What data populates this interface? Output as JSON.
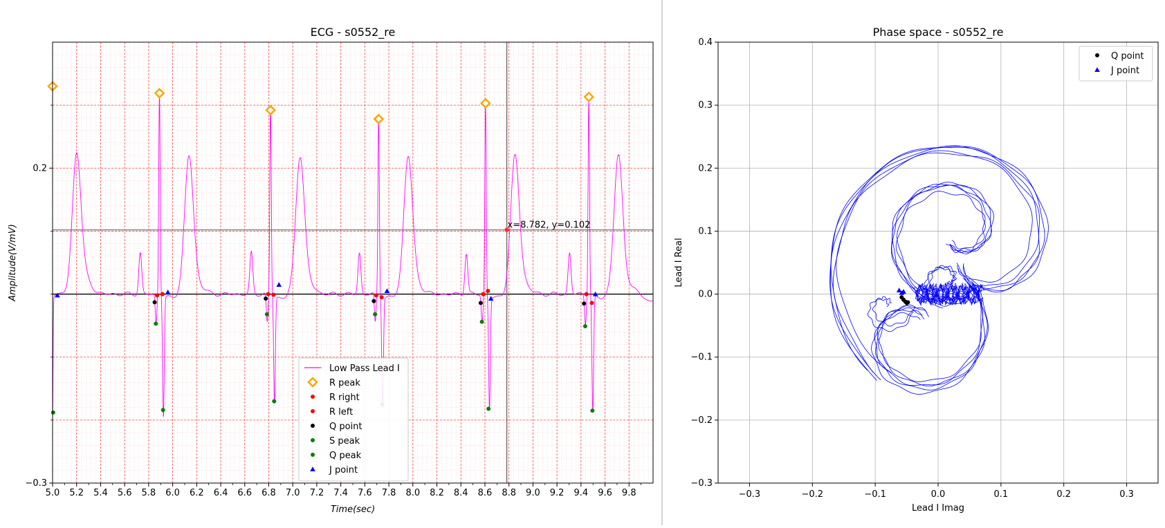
{
  "chart_data": [
    {
      "type": "line",
      "title": "ECG - s0552_re",
      "xlabel": "Time(sec)",
      "ylabel": "Amplitude(V/mV)",
      "xlim": [
        5.0,
        10.0
      ],
      "ylim": [
        -0.3,
        0.4
      ],
      "x_ticks": [
        "5.0",
        "5.2",
        "5.4",
        "5.6",
        "5.8",
        "6.0",
        "6.2",
        "6.4",
        "6.6",
        "6.8",
        "7.0",
        "7.2",
        "7.4",
        "7.6",
        "7.8",
        "8.0",
        "8.2",
        "8.4",
        "8.6",
        "8.8",
        "9.0",
        "9.2",
        "9.4",
        "9.6",
        "9.8"
      ],
      "y_ticks": [
        "0.2",
        "−0.3"
      ],
      "grid": "major and minor, red dashed",
      "baseline_y": 0.0,
      "cursor": {
        "x": 8.782,
        "y": 0.102,
        "label": "x=8.782, y=0.102"
      },
      "beats": [
        5.89,
        6.815,
        7.715,
        8.605,
        9.465
      ],
      "legend_position": "lower-center",
      "series": [
        {
          "name": "Low Pass Lead I",
          "color": "#ff00ff",
          "marker": "line"
        },
        {
          "name": "R peak",
          "color": "#ffa500",
          "marker": "diamond",
          "points": [
            [
              5.0,
              0.33
            ],
            [
              5.89,
              0.319
            ],
            [
              6.815,
              0.292
            ],
            [
              7.715,
              0.278
            ],
            [
              8.605,
              0.303
            ],
            [
              9.465,
              0.313
            ]
          ]
        },
        {
          "name": "R right",
          "color": "#ff0000",
          "marker": "dot",
          "points": [
            [
              5.915,
              0.0
            ],
            [
              6.84,
              -0.001
            ],
            [
              7.74,
              -0.005
            ],
            [
              8.625,
              0.005
            ],
            [
              9.49,
              -0.014
            ]
          ]
        },
        {
          "name": "R left",
          "color": "#ff0000",
          "marker": "dot",
          "points": [
            [
              5.87,
              -0.002
            ],
            [
              6.795,
              0.0
            ],
            [
              7.695,
              -0.002
            ],
            [
              8.585,
              0.0
            ],
            [
              9.445,
              0.0
            ]
          ]
        },
        {
          "name": "Q point",
          "color": "#000000",
          "marker": "dot",
          "points": [
            [
              5.85,
              -0.013
            ],
            [
              6.775,
              -0.007
            ],
            [
              7.675,
              -0.011
            ],
            [
              8.565,
              -0.014
            ],
            [
              9.425,
              -0.015
            ]
          ]
        },
        {
          "name": "S peak",
          "color": "#008000",
          "marker": "dot",
          "points": [
            [
              5.005,
              -0.188
            ],
            [
              5.92,
              -0.184
            ],
            [
              6.845,
              -0.17
            ],
            [
              7.745,
              -0.175
            ],
            [
              8.63,
              -0.182
            ],
            [
              9.495,
              -0.185
            ]
          ]
        },
        {
          "name": "Q peak",
          "color": "#008000",
          "marker": "dot",
          "points": [
            [
              5.86,
              -0.047
            ],
            [
              6.785,
              -0.032
            ],
            [
              7.685,
              -0.032
            ],
            [
              8.575,
              -0.044
            ],
            [
              9.435,
              -0.051
            ]
          ]
        },
        {
          "name": "J point",
          "color": "#0000ff",
          "marker": "triangle",
          "points": [
            [
              5.04,
              -0.002
            ],
            [
              5.96,
              0.003
            ],
            [
              6.885,
              0.015
            ],
            [
              7.785,
              0.005
            ],
            [
              8.65,
              -0.007
            ],
            [
              9.52,
              0.0
            ]
          ]
        }
      ]
    },
    {
      "type": "scatter",
      "title": "Phase space - s0552_re",
      "xlabel": "Lead I Imag",
      "ylabel": "Lead I Real",
      "xlim": [
        -0.35,
        0.35
      ],
      "ylim": [
        -0.3,
        0.4
      ],
      "x_ticks": [
        "−0.3",
        "−0.2",
        "−0.1",
        "0.0",
        "0.1",
        "0.2",
        "0.3"
      ],
      "y_ticks": [
        "−0.3",
        "−0.2",
        "−0.1",
        "0.0",
        "0.1",
        "0.2",
        "0.3",
        "0.4"
      ],
      "grid": "on",
      "legend_position": "top-right",
      "trajectory_color": "#0000ff",
      "series": [
        {
          "name": "Q point",
          "color": "#000000",
          "marker": "dot",
          "points": [
            [
              -0.058,
              -0.005
            ],
            [
              -0.055,
              -0.009
            ],
            [
              -0.052,
              -0.012
            ],
            [
              -0.05,
              -0.014
            ],
            [
              -0.048,
              -0.013
            ]
          ]
        },
        {
          "name": "J point",
          "color": "#0000ff",
          "marker": "triangle",
          "points": [
            [
              -0.062,
              0.006
            ],
            [
              -0.058,
              0.002
            ],
            [
              -0.055,
              0.004
            ]
          ]
        }
      ]
    }
  ]
}
